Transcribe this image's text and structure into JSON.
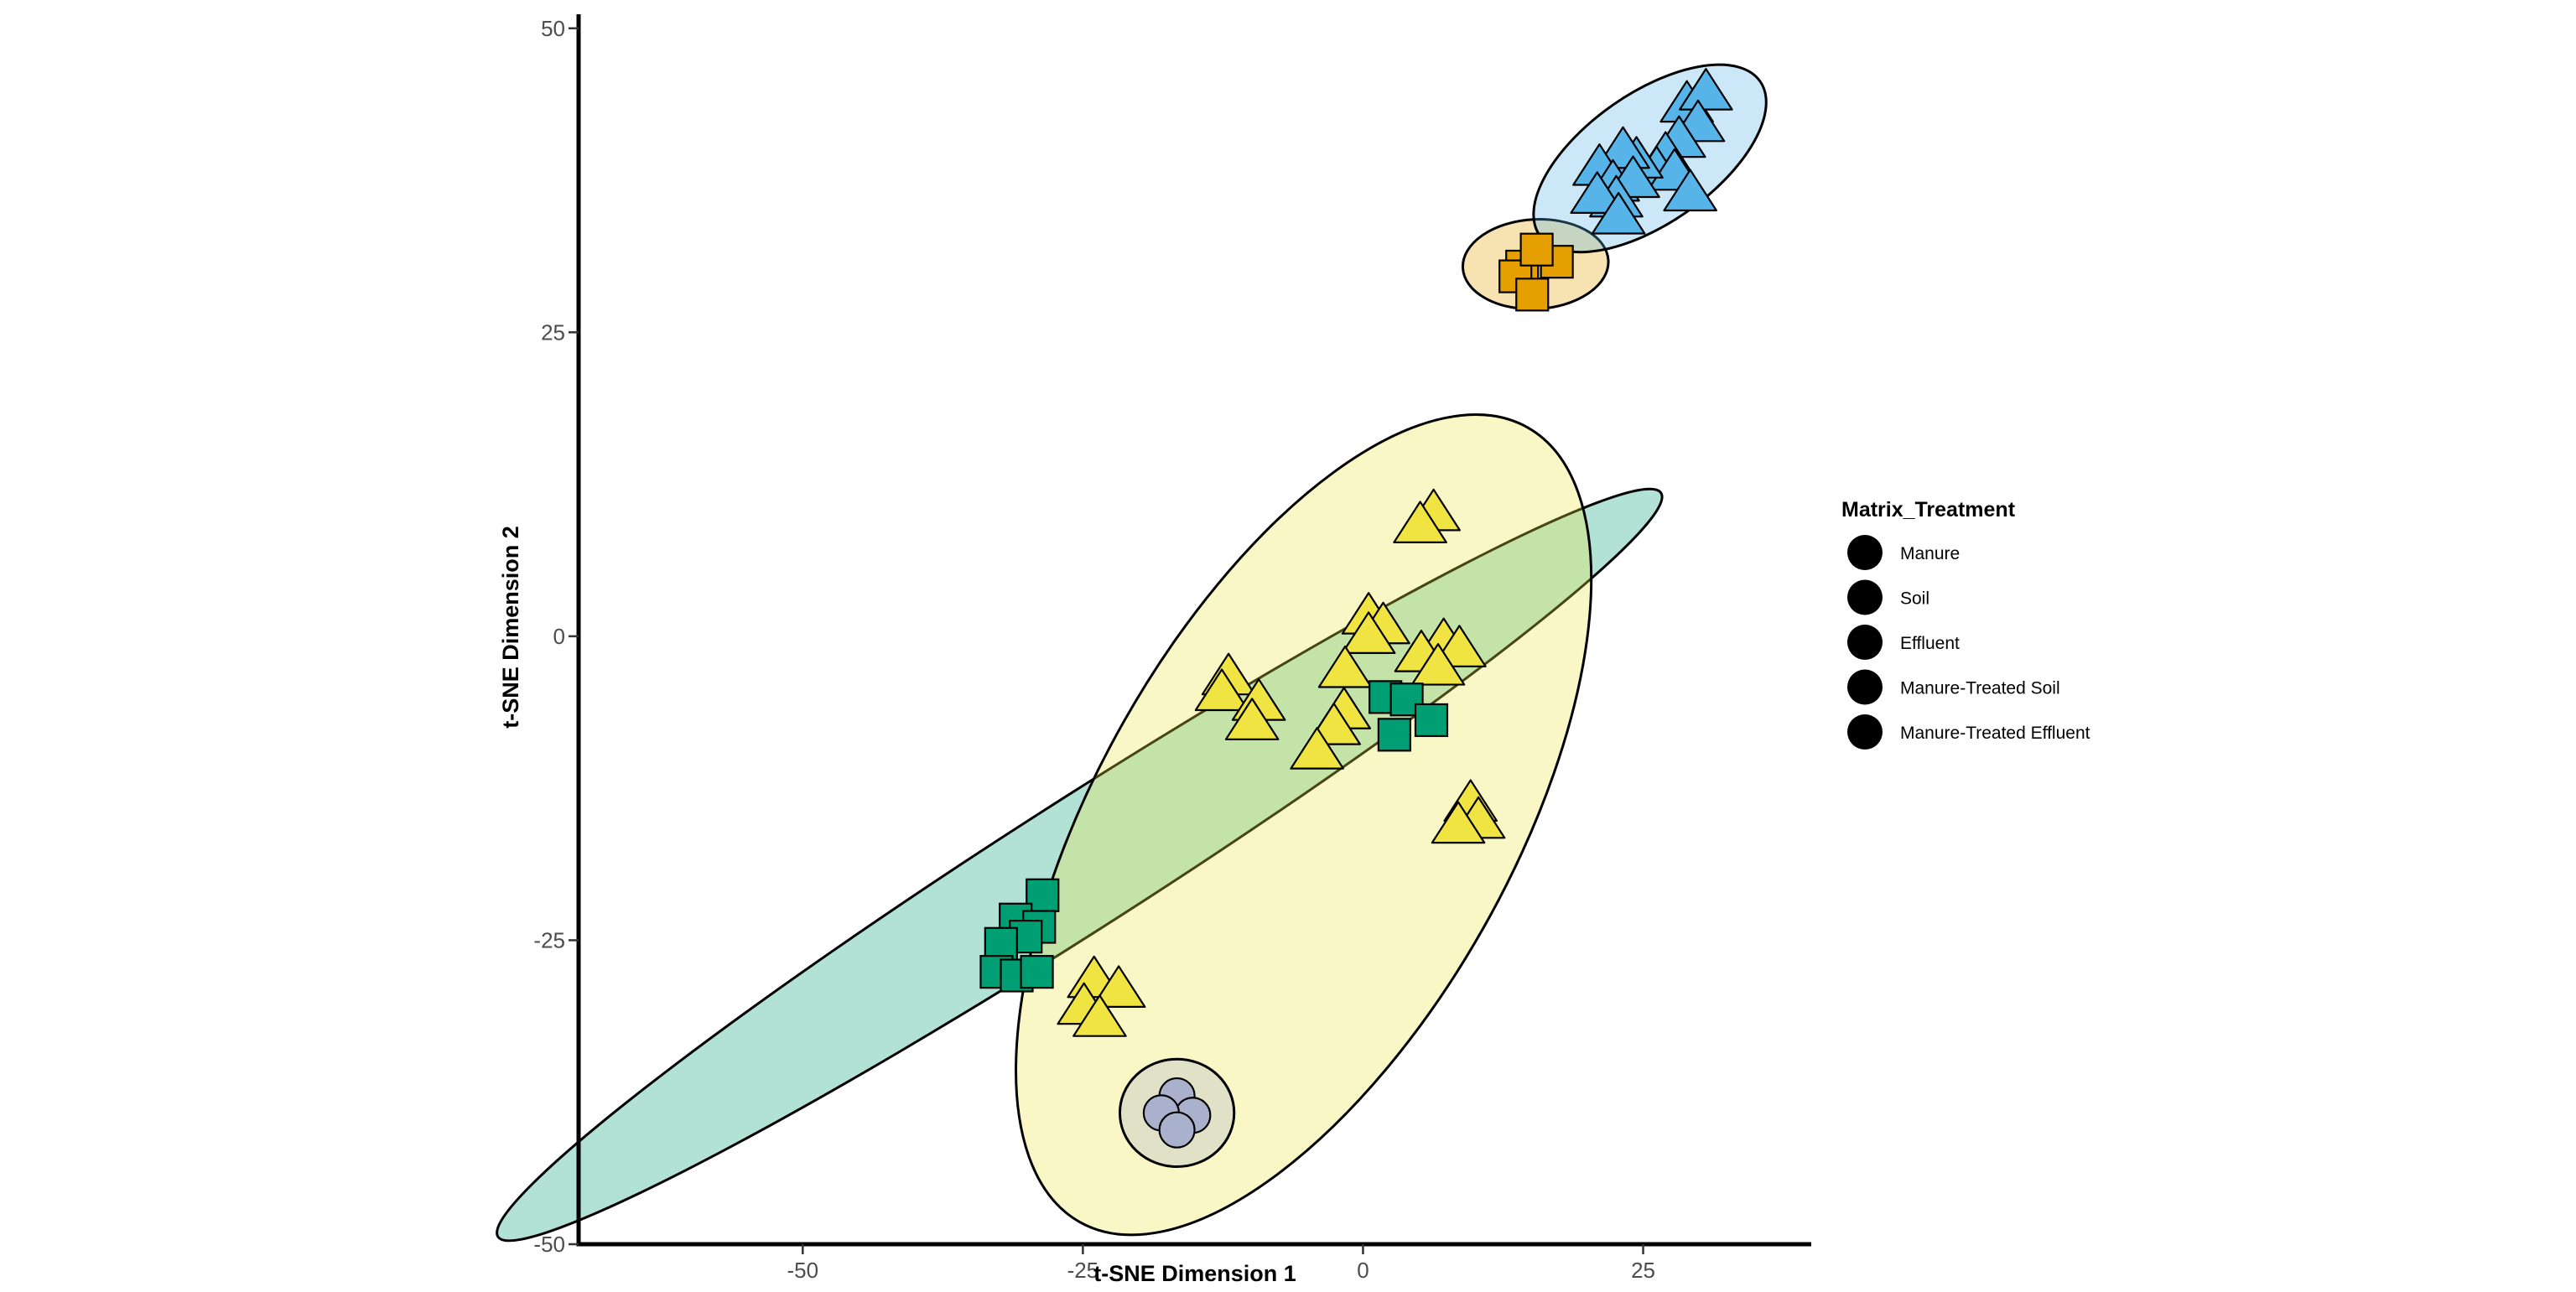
{
  "chart_data": {
    "type": "scatter",
    "title": "",
    "xlabel": "t-SNE Dimension 1",
    "ylabel": "t-SNE Dimension 2",
    "xlim": [
      -70,
      40
    ],
    "ylim": [
      -50,
      51.5
    ],
    "x_ticks": [
      -50,
      -25,
      0,
      25
    ],
    "y_ticks": [
      -50,
      -25,
      0,
      25,
      50
    ],
    "x_tick_labels": [
      "-50",
      "-25",
      "0",
      "25"
    ],
    "y_tick_labels": [
      "-50",
      "-25",
      "0",
      "25",
      "50"
    ],
    "grid": false,
    "legend": {
      "title": "Matrix_Treatment",
      "position": "right",
      "entries": [
        "Manure",
        "Soil",
        "Effluent",
        "Manure-Treated Soil",
        "Manure-Treated Effluent"
      ],
      "marker_color": "#000000"
    },
    "series": [
      {
        "group": "Manure",
        "shape": "square",
        "color": "#E69F00",
        "points": [
          [
            14.2,
            30.4
          ],
          [
            17.3,
            30.8
          ],
          [
            13.6,
            29.6
          ],
          [
            15.1,
            28.1
          ],
          [
            15.5,
            31.8
          ]
        ]
      },
      {
        "group": "Soil",
        "shape": "circle",
        "color": "#A9B1CD",
        "points": [
          [
            -16.6,
            -37.8
          ],
          [
            -15.2,
            -39.4
          ],
          [
            -18.0,
            -39.2
          ],
          [
            -16.6,
            -40.6
          ]
        ]
      },
      {
        "group": "Effluent",
        "shape": "triangle",
        "color": "#56B4E9",
        "points": [
          [
            28.9,
            43.6
          ],
          [
            30.6,
            44.6
          ],
          [
            29.9,
            42.0
          ],
          [
            28.2,
            40.7
          ],
          [
            27.0,
            39.4
          ],
          [
            26.2,
            38.2
          ],
          [
            27.8,
            38.0
          ],
          [
            24.4,
            39.0
          ],
          [
            23.2,
            39.8
          ],
          [
            21.1,
            38.4
          ],
          [
            22.3,
            37.1
          ],
          [
            24.1,
            37.4
          ],
          [
            22.6,
            35.8
          ],
          [
            20.9,
            36.1
          ],
          [
            22.8,
            34.4
          ],
          [
            29.2,
            36.3
          ]
        ]
      },
      {
        "group": "Manure-Treated Soil",
        "shape": "triangle",
        "color": "#F0E442",
        "points": [
          [
            6.3,
            10.0
          ],
          [
            5.1,
            9.0
          ],
          [
            0.5,
            1.5
          ],
          [
            1.8,
            0.7
          ],
          [
            0.5,
            -0.1
          ],
          [
            7.2,
            -0.6
          ],
          [
            5.2,
            -1.6
          ],
          [
            8.6,
            -1.2
          ],
          [
            6.7,
            -2.7
          ],
          [
            -1.6,
            -2.9
          ],
          [
            -12.0,
            -3.5
          ],
          [
            -12.6,
            -4.8
          ],
          [
            -9.3,
            -5.6
          ],
          [
            -1.7,
            -6.3
          ],
          [
            -2.6,
            -7.6
          ],
          [
            -9.9,
            -7.2
          ],
          [
            -4.1,
            -9.6
          ],
          [
            9.6,
            -13.9
          ],
          [
            10.3,
            -15.3
          ],
          [
            8.5,
            -15.7
          ],
          [
            -24.0,
            -28.4
          ],
          [
            -21.8,
            -29.2
          ],
          [
            -24.9,
            -30.6
          ],
          [
            -23.5,
            -31.6
          ]
        ]
      },
      {
        "group": "Manure-Treated Effluent",
        "shape": "square",
        "color": "#009E73",
        "points": [
          [
            2.0,
            -5.0
          ],
          [
            3.9,
            -5.2
          ],
          [
            6.1,
            -6.9
          ],
          [
            2.8,
            -8.1
          ],
          [
            -28.6,
            -21.3
          ],
          [
            -31.0,
            -23.3
          ],
          [
            -28.9,
            -23.9
          ],
          [
            -30.1,
            -24.7
          ],
          [
            -32.3,
            -25.3
          ],
          [
            -32.7,
            -27.6
          ],
          [
            -30.9,
            -27.9
          ],
          [
            -29.1,
            -27.6
          ]
        ]
      }
    ],
    "ellipses": [
      {
        "group": "Manure-Treated Effluent",
        "cx": -25.3,
        "cy": -18.8,
        "rx": 61.6,
        "ry": 5.8,
        "angle_deg": 32.6,
        "fill": "#009E73"
      },
      {
        "group": "Manure-Treated Soil",
        "cx": -5.3,
        "cy": -15.5,
        "rx": 40.7,
        "ry": 18.5,
        "angle_deg": 60.6,
        "fill": "#F0E442"
      },
      {
        "group": "Soil",
        "cx": -16.6,
        "cy": -39.2,
        "rx": 4.8,
        "ry": 5.1,
        "angle_deg": 90,
        "fill": "#A9B1CD"
      },
      {
        "group": "Manure",
        "cx": 15.4,
        "cy": 30.6,
        "rx": 6.5,
        "ry": 4.0,
        "angle_deg": 3,
        "fill": "#E69F00"
      },
      {
        "group": "Effluent",
        "cx": 25.6,
        "cy": 39.3,
        "rx": 12.0,
        "ry": 5.8,
        "angle_deg": 35,
        "fill": "#56B4E9"
      }
    ]
  }
}
